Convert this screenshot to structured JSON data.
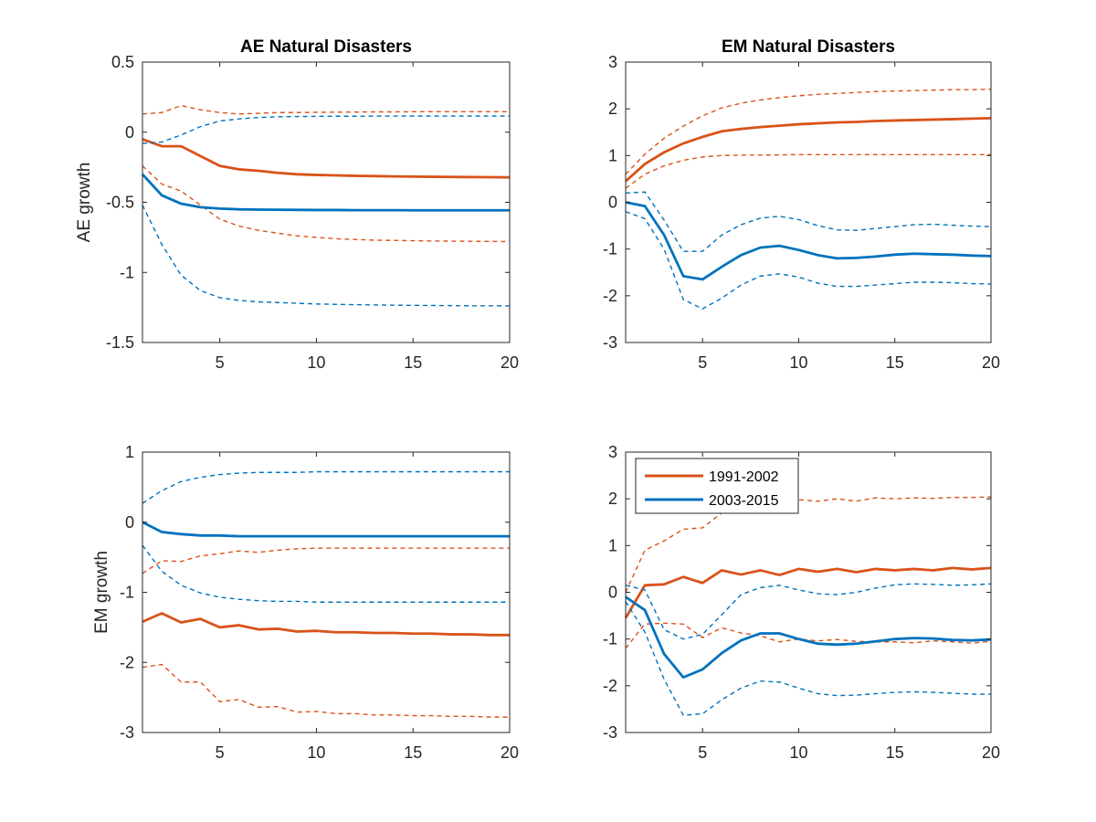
{
  "colors": {
    "s1991": "#D95319",
    "s2003": "#0072BD",
    "axis": "#262626"
  },
  "legend": {
    "entries": [
      "1991-2002",
      "2003-2015"
    ]
  },
  "chart_data": [
    {
      "id": "ae-ae",
      "type": "line",
      "title": "AE Natural Disasters",
      "xlabel": "",
      "ylabel": "AE growth",
      "xlim": [
        1,
        20
      ],
      "ylim": [
        -1.5,
        0.5
      ],
      "xticks": [
        5,
        10,
        15,
        20
      ],
      "yticks": [
        -1.5,
        -1,
        -0.5,
        0,
        0.5
      ],
      "xtick_labels": [
        "5",
        "10",
        "15",
        "20"
      ],
      "ytick_labels": [
        "-1.5",
        "-1",
        "-0.5",
        "0",
        "0.5"
      ],
      "legend": false,
      "series": [
        {
          "name": "1991-2002",
          "color_key": "s1991",
          "values": [
            -0.05,
            -0.1,
            -0.1,
            -0.17,
            -0.24,
            -0.265,
            -0.275,
            -0.29,
            -0.3,
            -0.305,
            -0.308,
            -0.311,
            -0.313,
            -0.315,
            -0.317,
            -0.318,
            -0.319,
            -0.32,
            -0.321,
            -0.322
          ],
          "lower": [
            -0.24,
            -0.37,
            -0.42,
            -0.52,
            -0.62,
            -0.67,
            -0.7,
            -0.72,
            -0.74,
            -0.75,
            -0.76,
            -0.765,
            -0.77,
            -0.772,
            -0.774,
            -0.776,
            -0.777,
            -0.778,
            -0.779,
            -0.78
          ],
          "upper": [
            0.13,
            0.14,
            0.19,
            0.16,
            0.14,
            0.13,
            0.135,
            0.14,
            0.14,
            0.142,
            0.143,
            0.144,
            0.145,
            0.145,
            0.146,
            0.146,
            0.146,
            0.146,
            0.146,
            0.146
          ]
        },
        {
          "name": "2003-2015",
          "color_key": "s2003",
          "values": [
            -0.3,
            -0.45,
            -0.51,
            -0.535,
            -0.545,
            -0.55,
            -0.552,
            -0.553,
            -0.554,
            -0.555,
            -0.555,
            -0.556,
            -0.556,
            -0.556,
            -0.557,
            -0.557,
            -0.557,
            -0.557,
            -0.557,
            -0.557
          ],
          "lower": [
            -0.52,
            -0.8,
            -1.02,
            -1.13,
            -1.18,
            -1.2,
            -1.21,
            -1.215,
            -1.22,
            -1.225,
            -1.228,
            -1.23,
            -1.232,
            -1.234,
            -1.235,
            -1.236,
            -1.237,
            -1.238,
            -1.238,
            -1.239
          ],
          "upper": [
            -0.08,
            -0.07,
            -0.02,
            0.04,
            0.08,
            0.095,
            0.105,
            0.11,
            0.112,
            0.113,
            0.114,
            0.114,
            0.115,
            0.115,
            0.115,
            0.115,
            0.115,
            0.115,
            0.115,
            0.115
          ]
        }
      ]
    },
    {
      "id": "em-ae",
      "type": "line",
      "title": "EM Natural Disasters",
      "xlabel": "",
      "ylabel": "",
      "xlim": [
        1,
        20
      ],
      "ylim": [
        -3,
        3
      ],
      "xticks": [
        5,
        10,
        15,
        20
      ],
      "yticks": [
        -3,
        -2,
        -1,
        0,
        1,
        2,
        3
      ],
      "xtick_labels": [
        "5",
        "10",
        "15",
        "20"
      ],
      "ytick_labels": [
        "-3",
        "-2",
        "-1",
        "0",
        "1",
        "2",
        "3"
      ],
      "legend": false,
      "series": [
        {
          "name": "1991-2002",
          "color_key": "s1991",
          "values": [
            0.45,
            0.82,
            1.07,
            1.26,
            1.4,
            1.52,
            1.57,
            1.61,
            1.64,
            1.67,
            1.69,
            1.71,
            1.72,
            1.74,
            1.75,
            1.76,
            1.77,
            1.78,
            1.79,
            1.8
          ],
          "lower": [
            0.3,
            0.6,
            0.78,
            0.9,
            0.97,
            1.0,
            1.01,
            1.01,
            1.015,
            1.02,
            1.02,
            1.02,
            1.02,
            1.02,
            1.02,
            1.02,
            1.02,
            1.02,
            1.02,
            1.02
          ],
          "upper": [
            0.6,
            1.03,
            1.37,
            1.63,
            1.85,
            2.02,
            2.12,
            2.19,
            2.24,
            2.28,
            2.31,
            2.33,
            2.35,
            2.37,
            2.38,
            2.39,
            2.4,
            2.41,
            2.41,
            2.42
          ]
        },
        {
          "name": "2003-2015",
          "color_key": "s2003",
          "values": [
            0.0,
            -0.08,
            -0.7,
            -1.58,
            -1.65,
            -1.38,
            -1.13,
            -0.97,
            -0.93,
            -1.02,
            -1.13,
            -1.2,
            -1.19,
            -1.16,
            -1.12,
            -1.1,
            -1.11,
            -1.12,
            -1.14,
            -1.15
          ],
          "lower": [
            -0.2,
            -0.35,
            -1.0,
            -2.08,
            -2.28,
            -2.05,
            -1.77,
            -1.58,
            -1.53,
            -1.6,
            -1.73,
            -1.8,
            -1.8,
            -1.77,
            -1.74,
            -1.71,
            -1.71,
            -1.72,
            -1.74,
            -1.75
          ],
          "upper": [
            0.2,
            0.22,
            -0.38,
            -1.05,
            -1.05,
            -0.7,
            -0.48,
            -0.34,
            -0.3,
            -0.37,
            -0.5,
            -0.59,
            -0.6,
            -0.56,
            -0.52,
            -0.48,
            -0.47,
            -0.49,
            -0.51,
            -0.52
          ]
        }
      ]
    },
    {
      "id": "ae-em",
      "type": "line",
      "title": "",
      "xlabel": "",
      "ylabel": "EM growth",
      "xlim": [
        1,
        20
      ],
      "ylim": [
        -3,
        1
      ],
      "xticks": [
        5,
        10,
        15,
        20
      ],
      "yticks": [
        -3,
        -2,
        -1,
        0,
        1
      ],
      "xtick_labels": [
        "5",
        "10",
        "15",
        "20"
      ],
      "ytick_labels": [
        "-3",
        "-2",
        "-1",
        "0",
        "1"
      ],
      "legend": false,
      "series": [
        {
          "name": "1991-2002",
          "color_key": "s1991",
          "values": [
            -1.42,
            -1.3,
            -1.43,
            -1.38,
            -1.5,
            -1.47,
            -1.53,
            -1.52,
            -1.56,
            -1.55,
            -1.57,
            -1.57,
            -1.58,
            -1.58,
            -1.59,
            -1.59,
            -1.6,
            -1.6,
            -1.61,
            -1.61
          ],
          "lower": [
            -2.07,
            -2.03,
            -2.28,
            -2.28,
            -2.56,
            -2.53,
            -2.64,
            -2.63,
            -2.71,
            -2.7,
            -2.73,
            -2.73,
            -2.75,
            -2.75,
            -2.76,
            -2.76,
            -2.77,
            -2.77,
            -2.78,
            -2.78
          ],
          "upper": [
            -0.73,
            -0.55,
            -0.56,
            -0.48,
            -0.45,
            -0.41,
            -0.43,
            -0.4,
            -0.38,
            -0.37,
            -0.37,
            -0.37,
            -0.37,
            -0.37,
            -0.37,
            -0.37,
            -0.37,
            -0.37,
            -0.37,
            -0.37
          ]
        },
        {
          "name": "2003-2015",
          "color_key": "s2003",
          "values": [
            0.0,
            -0.14,
            -0.17,
            -0.19,
            -0.19,
            -0.2,
            -0.2,
            -0.2,
            -0.2,
            -0.2,
            -0.2,
            -0.2,
            -0.2,
            -0.2,
            -0.2,
            -0.2,
            -0.2,
            -0.2,
            -0.2,
            -0.2
          ],
          "lower": [
            -0.33,
            -0.7,
            -0.9,
            -1.01,
            -1.07,
            -1.1,
            -1.12,
            -1.13,
            -1.13,
            -1.14,
            -1.14,
            -1.14,
            -1.14,
            -1.14,
            -1.14,
            -1.14,
            -1.14,
            -1.14,
            -1.14,
            -1.14
          ],
          "upper": [
            0.27,
            0.45,
            0.58,
            0.64,
            0.68,
            0.7,
            0.71,
            0.71,
            0.71,
            0.72,
            0.72,
            0.72,
            0.72,
            0.72,
            0.72,
            0.72,
            0.72,
            0.72,
            0.72,
            0.72
          ]
        }
      ]
    },
    {
      "id": "em-em",
      "type": "line",
      "title": "",
      "xlabel": "",
      "ylabel": "",
      "xlim": [
        1,
        20
      ],
      "ylim": [
        -3,
        3
      ],
      "xticks": [
        5,
        10,
        15,
        20
      ],
      "yticks": [
        -3,
        -2,
        -1,
        0,
        1,
        2,
        3
      ],
      "xtick_labels": [
        "5",
        "10",
        "15",
        "20"
      ],
      "ytick_labels": [
        "-3",
        "-2",
        "-1",
        "0",
        "1",
        "2",
        "3"
      ],
      "legend": true,
      "legend_position": "top-left",
      "series": [
        {
          "name": "1991-2002",
          "color_key": "s1991",
          "values": [
            -0.55,
            0.15,
            0.17,
            0.33,
            0.2,
            0.47,
            0.38,
            0.47,
            0.37,
            0.5,
            0.44,
            0.5,
            0.43,
            0.5,
            0.47,
            0.5,
            0.47,
            0.52,
            0.49,
            0.52
          ],
          "lower": [
            -1.2,
            -0.68,
            -0.66,
            -0.68,
            -0.97,
            -0.76,
            -0.87,
            -0.93,
            -1.06,
            -1.0,
            -1.04,
            -1.01,
            -1.05,
            -1.06,
            -1.06,
            -1.08,
            -1.04,
            -1.06,
            -1.09,
            -1.05
          ],
          "upper": [
            0.0,
            0.9,
            1.1,
            1.35,
            1.38,
            1.7,
            1.75,
            1.9,
            1.85,
            1.98,
            1.95,
            2.0,
            1.95,
            2.02,
            2.0,
            2.02,
            2.01,
            2.03,
            2.03,
            2.04
          ]
        },
        {
          "name": "2003-2015",
          "color_key": "s2003",
          "values": [
            -0.1,
            -0.38,
            -1.32,
            -1.82,
            -1.65,
            -1.3,
            -1.03,
            -0.88,
            -0.88,
            -1.0,
            -1.1,
            -1.12,
            -1.1,
            -1.05,
            -1.0,
            -0.98,
            -0.99,
            -1.02,
            -1.03,
            -1.01
          ],
          "lower": [
            -0.2,
            -0.85,
            -1.86,
            -2.63,
            -2.6,
            -2.3,
            -2.05,
            -1.9,
            -1.92,
            -2.05,
            -2.17,
            -2.21,
            -2.2,
            -2.17,
            -2.14,
            -2.13,
            -2.14,
            -2.16,
            -2.18,
            -2.18
          ],
          "upper": [
            0.15,
            0.05,
            -0.8,
            -1.0,
            -0.9,
            -0.48,
            -0.05,
            0.1,
            0.15,
            0.05,
            -0.03,
            -0.05,
            0.0,
            0.09,
            0.16,
            0.18,
            0.17,
            0.15,
            0.16,
            0.18
          ]
        }
      ]
    }
  ]
}
